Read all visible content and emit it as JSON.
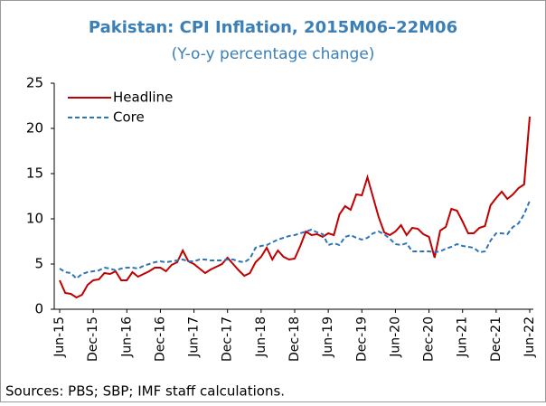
{
  "chart_data": {
    "type": "line",
    "title": "Pakistan: CPI Inflation, 2015M06–22M06",
    "subtitle": "(Y-o-y percentage change)",
    "source": "Sources: PBS; SBP; IMF staff calculations.",
    "categories": [
      "Jun-15",
      null,
      null,
      null,
      null,
      null,
      "Dec-15",
      null,
      null,
      null,
      null,
      null,
      "Jun-16",
      null,
      null,
      null,
      null,
      null,
      "Dec-16",
      null,
      null,
      null,
      null,
      null,
      "Jun-17",
      null,
      null,
      null,
      null,
      null,
      "Dec-17",
      null,
      null,
      null,
      null,
      null,
      "Jun-18",
      null,
      null,
      null,
      null,
      null,
      "Dec-18",
      null,
      null,
      null,
      null,
      null,
      "Jun-19",
      null,
      null,
      null,
      null,
      null,
      "Dec-19",
      null,
      null,
      null,
      null,
      null,
      "Jun-20",
      null,
      null,
      null,
      null,
      null,
      "Dec-20",
      null,
      null,
      null,
      null,
      null,
      "Jun-21",
      null,
      null,
      null,
      null,
      null,
      "Dec-21",
      null,
      null,
      null,
      null,
      null,
      "Jun-22"
    ],
    "series": [
      {
        "name": "Headline",
        "color": "#c00000",
        "dash": false,
        "values": [
          3.2,
          1.8,
          1.7,
          1.3,
          1.6,
          2.7,
          3.2,
          3.3,
          4.0,
          3.9,
          4.2,
          3.2,
          3.2,
          4.1,
          3.6,
          3.9,
          4.2,
          4.6,
          4.6,
          4.2,
          4.9,
          5.2,
          6.5,
          5.3,
          5.0,
          4.5,
          4.0,
          4.4,
          4.7,
          5.0,
          5.7,
          5.0,
          4.3,
          3.7,
          4.0,
          5.2,
          5.8,
          6.8,
          5.5,
          6.5,
          5.8,
          5.5,
          5.6,
          7.0,
          8.6,
          8.2,
          8.3,
          8.0,
          8.4,
          8.2,
          10.5,
          11.4,
          11.0,
          12.7,
          12.6,
          14.6,
          12.4,
          10.2,
          8.5,
          8.2,
          8.6,
          9.3,
          8.2,
          9.0,
          8.9,
          8.3,
          8.0,
          5.7,
          8.7,
          9.1,
          11.1,
          10.9,
          9.7,
          8.4,
          8.4,
          9.0,
          9.2,
          11.5,
          12.3,
          13.0,
          12.2,
          12.7,
          13.4,
          13.8,
          21.3
        ]
      },
      {
        "name": "Core",
        "color": "#2e75b6",
        "dash": true,
        "values": [
          4.5,
          4.1,
          4.0,
          3.4,
          3.9,
          4.1,
          4.2,
          4.3,
          4.6,
          4.5,
          4.3,
          4.5,
          4.6,
          4.6,
          4.5,
          4.8,
          5.0,
          5.2,
          5.3,
          5.2,
          5.3,
          5.4,
          5.5,
          5.3,
          5.3,
          5.5,
          5.5,
          5.4,
          5.4,
          5.4,
          5.5,
          5.5,
          5.3,
          5.2,
          5.6,
          6.8,
          7.0,
          7.1,
          7.4,
          7.7,
          7.9,
          8.1,
          8.2,
          8.4,
          8.6,
          8.8,
          8.5,
          8.3,
          7.1,
          7.3,
          7.1,
          8.0,
          8.2,
          7.9,
          7.7,
          7.9,
          8.4,
          8.6,
          8.3,
          7.8,
          7.2,
          7.1,
          7.3,
          6.4,
          6.4,
          6.4,
          6.4,
          6.3,
          6.4,
          6.7,
          6.9,
          7.2,
          7.0,
          6.9,
          6.8,
          6.3,
          6.4,
          7.6,
          8.4,
          8.4,
          8.3,
          9.1,
          9.5,
          10.5,
          12.0
        ]
      }
    ],
    "ylim": [
      0,
      25
    ],
    "yticks": [
      0,
      5,
      10,
      15,
      20,
      25
    ],
    "legend": "upper left",
    "grid": false,
    "title_color": "#3b7fb6"
  }
}
